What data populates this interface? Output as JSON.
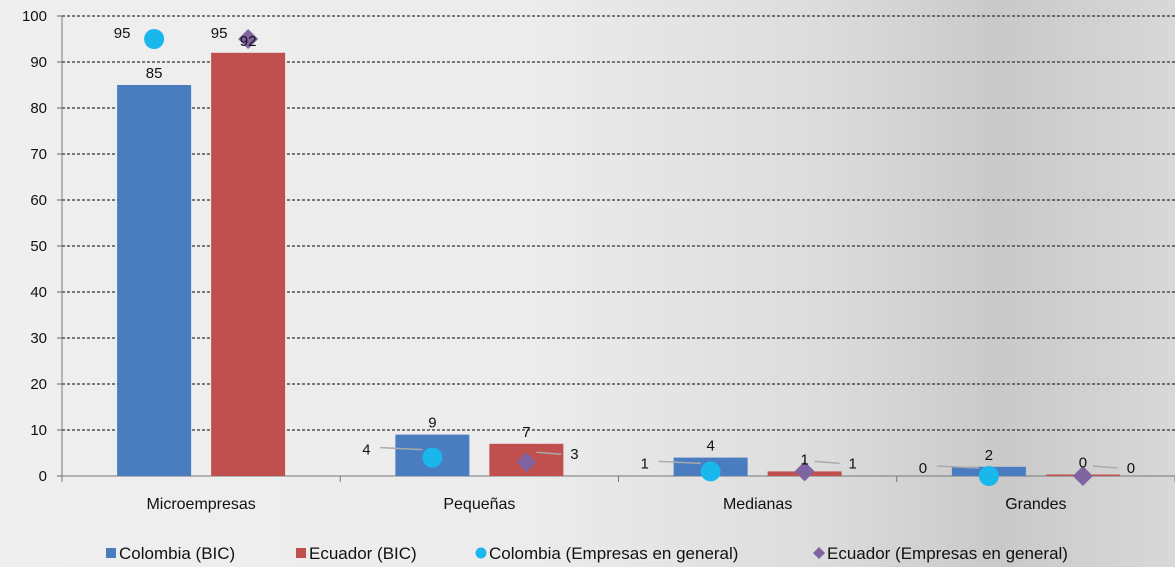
{
  "chart_data": {
    "type": "bar",
    "categories": [
      "Microempresas",
      "Pequeñas",
      "Medianas",
      "Grandes"
    ],
    "ylim": [
      0,
      100
    ],
    "yticks": [
      0,
      10,
      20,
      30,
      40,
      50,
      60,
      70,
      80,
      90,
      100
    ],
    "grid": true,
    "legend_position": "bottom",
    "series": [
      {
        "name": "Colombia (BIC)",
        "kind": "bar",
        "color": "#4a7cc0",
        "values": [
          85,
          9,
          4,
          2
        ]
      },
      {
        "name": "Ecuador (BIC)",
        "kind": "bar",
        "color": "#c0504d",
        "values": [
          92,
          7,
          1,
          0
        ]
      },
      {
        "name": "Colombia (Empresas en general)",
        "kind": "marker",
        "marker": "circle",
        "color": "#19b7ec",
        "values": [
          95,
          4,
          1,
          0
        ]
      },
      {
        "name": "Ecuador (Empresas en general)",
        "kind": "marker",
        "marker": "diamond",
        "color": "#8064a2",
        "values": [
          95,
          3,
          1,
          0
        ]
      }
    ]
  }
}
